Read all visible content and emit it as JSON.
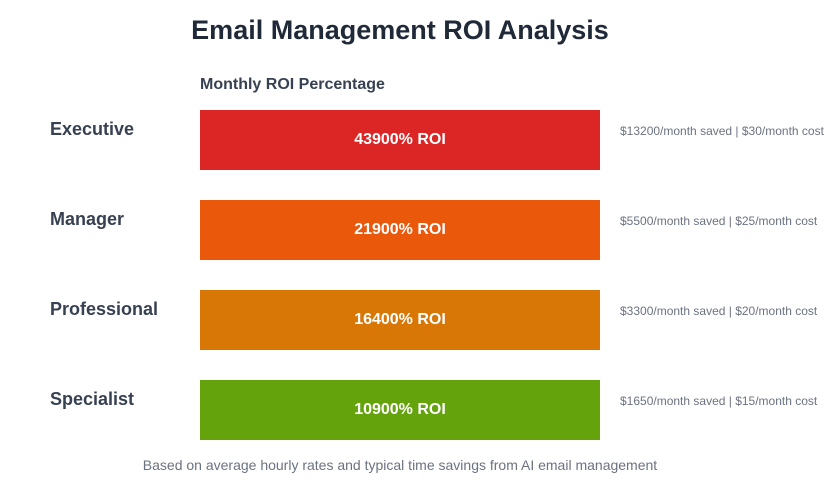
{
  "chart_data": {
    "type": "bar",
    "orientation": "horizontal",
    "title": "Email Management ROI Analysis",
    "subtitle": "Monthly ROI Percentage",
    "categories": [
      "Executive",
      "Manager",
      "Professional",
      "Specialist"
    ],
    "values": [
      43900,
      21900,
      16400,
      10900
    ],
    "value_labels": [
      "43900% ROI",
      "21900% ROI",
      "16400% ROI",
      "10900% ROI"
    ],
    "notes": [
      "$13200/month saved | $30/month cost",
      "$5500/month saved | $25/month cost",
      "$3300/month saved | $20/month cost",
      "$1650/month saved | $15/month cost"
    ],
    "colors": [
      "#dc2626",
      "#ea580c",
      "#d97706",
      "#65a30d"
    ],
    "display_cap_fraction": 1,
    "footer": "Based on average hourly rates and typical time savings from AI email management"
  }
}
